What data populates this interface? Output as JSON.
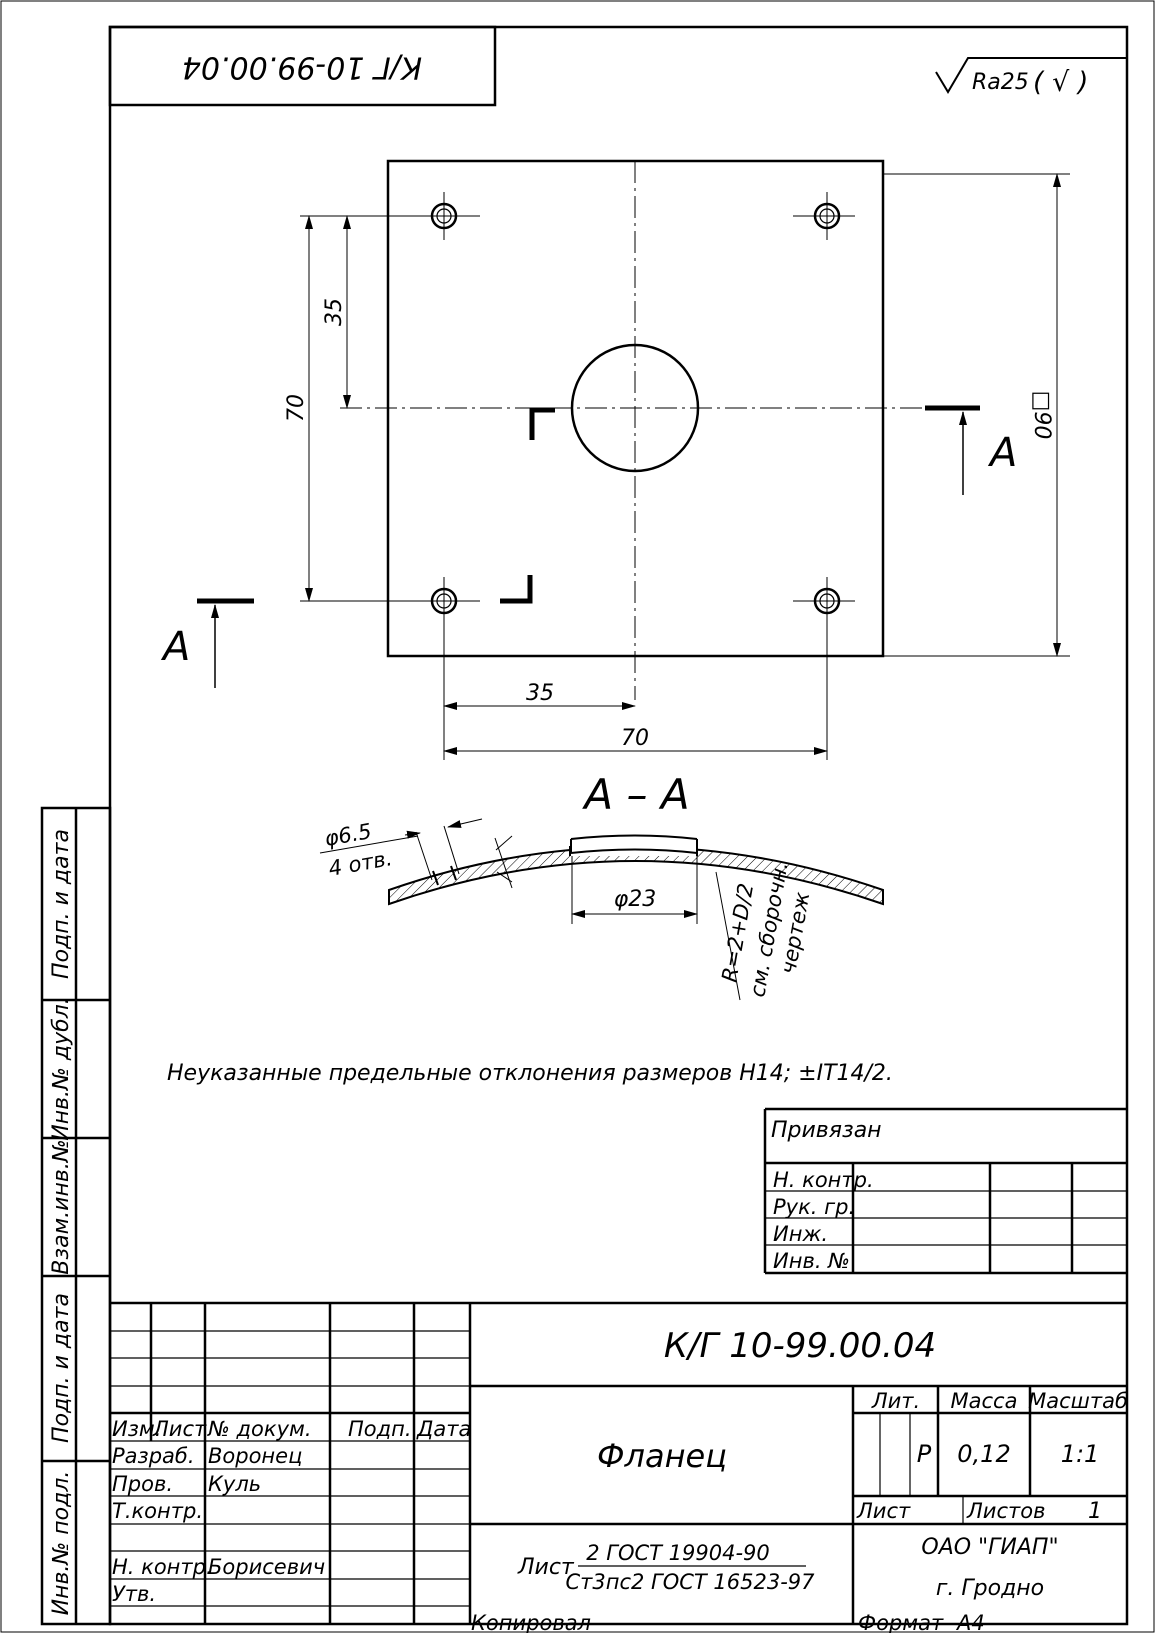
{
  "stamp_rotated": "К/Г 10-99.00.04",
  "roughness": "Ra25",
  "roughness_mark": "( √ )",
  "dims": {
    "v70": "70",
    "v35": "35",
    "h35": "35",
    "h70": "70",
    "sq90": "□90",
    "section_label": "А",
    "section_label_left": "А"
  },
  "section": {
    "title": "А – А",
    "hole": "φ6.5",
    "holes_count": "4 отв.",
    "dia": "φ23",
    "radius": "R=2+D/2",
    "ref_line1": "см. сборочн.",
    "ref_line2": "чертеж"
  },
  "note": "Неуказанные предельные отклонения размеров H14; ±IT14/2.",
  "binding": {
    "title": "Привязан",
    "rows": [
      "Н. контр.",
      "Рук. гр.",
      "Инж.",
      "Инв. №"
    ]
  },
  "side": [
    "Подп. и дата",
    "Инв.№ дубл.",
    "Взам.инв.№",
    "Подп. и дата",
    "Инв.№ подл."
  ],
  "title_block": {
    "doc_number": "К/Г 10-99.00.04",
    "part_name": "Фланец",
    "headers": {
      "izm": "Изм.",
      "list": "Лист",
      "doc": "№ докум.",
      "podp": "Подп.",
      "date": "Дата"
    },
    "roles": {
      "razrab": "Разраб.",
      "razrab_name": "Воронец",
      "prov": "Пров.",
      "prov_name": "Куль",
      "tkontr": "Т.контр.",
      "nkontr": "Н. контр.",
      "nkontr_name": "Борисевич",
      "utv": "Утв."
    },
    "lit": "Лит.",
    "mass": "Масса",
    "scale": "Масштаб",
    "lit_value": "Р",
    "mass_value": "0,12",
    "scale_value": "1:1",
    "sheet": "Лист",
    "sheets": "Листов",
    "sheets_value": "1",
    "material_prefix": "Лист",
    "material_top": "2 ГОСТ 19904-90",
    "material_bottom": "Ст3пс2 ГОСТ 16523-97",
    "org": "ОАО \"ГИАП\"",
    "city": "г. Гродно"
  },
  "footer": {
    "copied": "Копировал",
    "format": "Формат",
    "format_value": "А4"
  }
}
